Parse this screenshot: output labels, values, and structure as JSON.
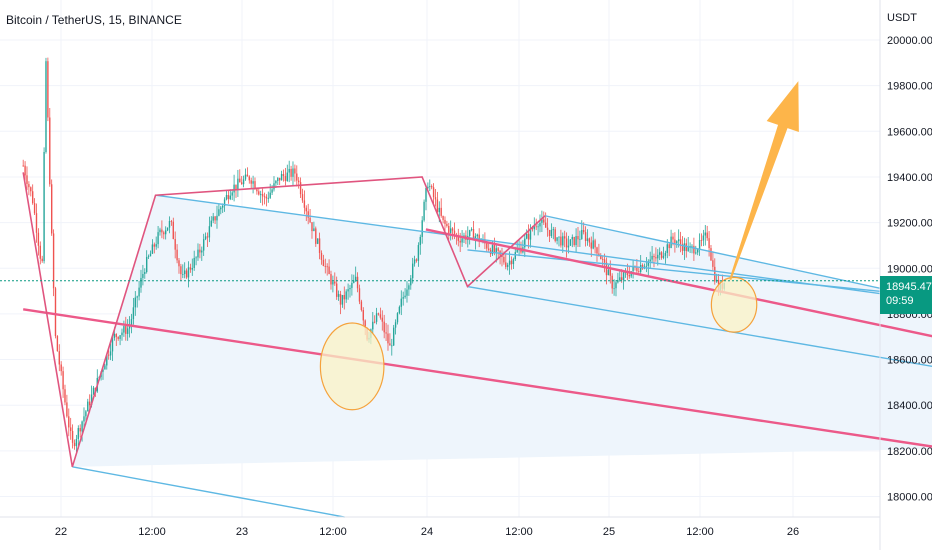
{
  "header": {
    "symbol_title": "Bitcoin / TetherUS, 15, BINANCE",
    "currency": "USDT"
  },
  "price_tag": {
    "price": "18945.47",
    "countdown": "09:59"
  },
  "colors": {
    "channel_line": "#5eb8e3",
    "trend_line": "#ec5989",
    "zigzag": "#e0557f",
    "channel_fill": "#eef5fc",
    "highlight_fill": "#fbf2c6",
    "highlight_stroke": "#f5a23c",
    "arrow": "#fdb54a",
    "up_candle": "#26a69a",
    "down_candle": "#ef5350",
    "last_price": "#089981",
    "grid": "#f0f3fa"
  },
  "chart_data": {
    "type": "candlestick",
    "title": "Bitcoin / TetherUS, 15, BINANCE",
    "y_unit": "USDT",
    "ylim": [
      17950,
      20150
    ],
    "y_ticks": [
      18000,
      18200,
      18400,
      18600,
      18800,
      19000,
      19200,
      19400,
      19600,
      19800,
      20000
    ],
    "y_tick_labels": [
      "18000.00",
      "18200.00",
      "18400.00",
      "18600.00",
      "18800.00",
      "19000.00",
      "19200.00",
      "19400.00",
      "19600.00",
      "19800.00",
      "20000.00"
    ],
    "x_ticks": [
      "22",
      "12:00",
      "23",
      "12:00",
      "24",
      "12:00",
      "25",
      "12:00",
      "26"
    ],
    "last_price": 18945.47,
    "price_path": [
      {
        "t": "21 19:00",
        "p": 19450
      },
      {
        "t": "21 20:15",
        "p": 19300
      },
      {
        "t": "21 21:30",
        "p": 19000
      },
      {
        "t": "21 22:00",
        "p": 19920
      },
      {
        "t": "21 22:45",
        "p": 19150
      },
      {
        "t": "21 23:15",
        "p": 18700
      },
      {
        "t": "22 00:30",
        "p": 18420
      },
      {
        "t": "22 01:30",
        "p": 18220
      },
      {
        "t": "22 03:00",
        "p": 18350
      },
      {
        "t": "22 05:00",
        "p": 18520
      },
      {
        "t": "22 07:00",
        "p": 18700
      },
      {
        "t": "22 09:00",
        "p": 18740
      },
      {
        "t": "22 11:00",
        "p": 19000
      },
      {
        "t": "22 13:00",
        "p": 19150
      },
      {
        "t": "22 14:30",
        "p": 19200
      },
      {
        "t": "22 16:00",
        "p": 18950
      },
      {
        "t": "22 18:00",
        "p": 19050
      },
      {
        "t": "22 20:00",
        "p": 19200
      },
      {
        "t": "22 22:30",
        "p": 19350
      },
      {
        "t": "23 01:00",
        "p": 19400
      },
      {
        "t": "23 03:00",
        "p": 19300
      },
      {
        "t": "23 05:00",
        "p": 19400
      },
      {
        "t": "23 07:00",
        "p": 19420
      },
      {
        "t": "23 09:00",
        "p": 19200
      },
      {
        "t": "23 11:00",
        "p": 19000
      },
      {
        "t": "23 13:00",
        "p": 18850
      },
      {
        "t": "23 15:00",
        "p": 18950
      },
      {
        "t": "23 16:30",
        "p": 18700
      },
      {
        "t": "23 18:00",
        "p": 18800
      },
      {
        "t": "23 19:30",
        "p": 18650
      },
      {
        "t": "23 21:00",
        "p": 18850
      },
      {
        "t": "23 23:00",
        "p": 19050
      },
      {
        "t": "24 00:30",
        "p": 19380
      },
      {
        "t": "24 02:30",
        "p": 19200
      },
      {
        "t": "24 04:30",
        "p": 19130
      },
      {
        "t": "24 06:30",
        "p": 19150
      },
      {
        "t": "24 09:00",
        "p": 19080
      },
      {
        "t": "24 11:00",
        "p": 19020
      },
      {
        "t": "24 13:00",
        "p": 19100
      },
      {
        "t": "24 15:00",
        "p": 19210
      },
      {
        "t": "24 17:00",
        "p": 19150
      },
      {
        "t": "24 19:00",
        "p": 19100
      },
      {
        "t": "24 21:00",
        "p": 19150
      },
      {
        "t": "24 23:00",
        "p": 19080
      },
      {
        "t": "25 01:00",
        "p": 18920
      },
      {
        "t": "25 03:00",
        "p": 18980
      },
      {
        "t": "25 05:00",
        "p": 19020
      },
      {
        "t": "25 07:00",
        "p": 19050
      },
      {
        "t": "25 09:00",
        "p": 19130
      },
      {
        "t": "25 11:00",
        "p": 19080
      },
      {
        "t": "25 12:30",
        "p": 19100
      },
      {
        "t": "25 13:30",
        "p": 19150
      },
      {
        "t": "25 14:15",
        "p": 18990
      },
      {
        "t": "25 15:00",
        "p": 18900
      },
      {
        "t": "25 15:45",
        "p": 18945
      }
    ],
    "drawings": {
      "zigzag": [
        {
          "t": "21 19:00",
          "p": 19420
        },
        {
          "t": "22 01:30",
          "p": 18130
        },
        {
          "t": "22 12:30",
          "p": 19320
        },
        {
          "t": "23 23:45",
          "p": 19400
        },
        {
          "t": "24 05:45",
          "p": 18920
        },
        {
          "t": "24 16:00",
          "p": 19230
        }
      ],
      "trend_line_long": [
        {
          "t": "21 19:00",
          "p": 18820
        },
        {
          "t": "26 21:00",
          "p": 18210
        }
      ],
      "trend_line_short": [
        {
          "t": "24 00:15",
          "p": 19170
        },
        {
          "t": "26 21:00",
          "p": 18690
        }
      ],
      "channel_1_upper": [
        {
          "t": "22 12:30",
          "p": 19320
        },
        {
          "t": "26 21:00",
          "p": 18850
        }
      ],
      "channel_1_lower": [
        {
          "t": "22 01:30",
          "p": 18130
        },
        {
          "t": "23 13:30",
          "p": 17910
        }
      ],
      "channel_2_upper": [
        {
          "t": "24 16:00",
          "p": 19230
        },
        {
          "t": "26 21:00",
          "p": 18850
        }
      ],
      "channel_2_lower": [
        {
          "t": "24 05:45",
          "p": 18920
        },
        {
          "t": "26 21:00",
          "p": 18560
        }
      ],
      "channel_2_mid": [
        {
          "t": "24 05:45",
          "p": 19080
        },
        {
          "t": "26 21:00",
          "p": 18870
        }
      ],
      "highlight_circles": [
        {
          "t": "23 14:30",
          "p": 18570,
          "rt_hours": 4.2,
          "rp": 190
        },
        {
          "t": "25 17:00",
          "p": 18840,
          "rt_hours": 3.0,
          "rp": 120
        }
      ],
      "forecast_arrow": {
        "from": {
          "t": "25 16:30",
          "p": 18950
        },
        "to": {
          "t": "26 01:30",
          "p": 19820
        }
      }
    }
  }
}
